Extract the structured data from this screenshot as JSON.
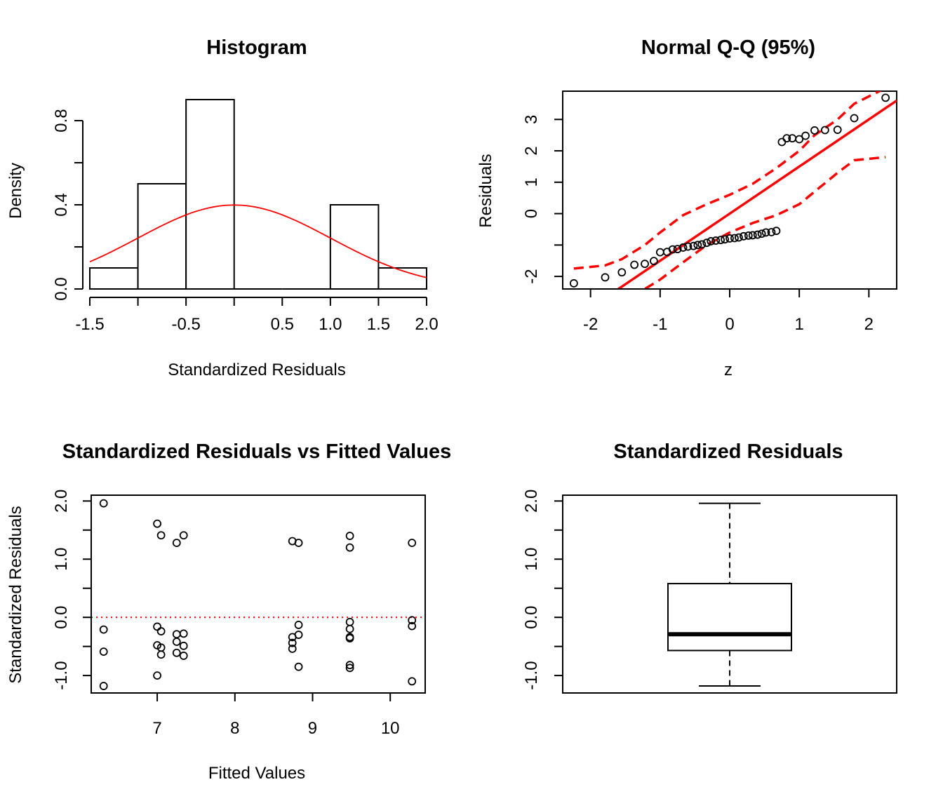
{
  "chart_data": [
    {
      "type": "histogram",
      "title": "Histogram",
      "xlabel": "Standardized Residuals",
      "ylabel": "Density",
      "xlim": [
        -1.5,
        2.0
      ],
      "ylim": [
        0,
        0.9
      ],
      "xticks": [
        "-1.5",
        "-0.5",
        "0.5",
        "1.0",
        "1.5",
        "2.0"
      ],
      "xtick_values": [
        -1.5,
        -0.5,
        0.5,
        1.0,
        1.5,
        2.0
      ],
      "xtick_marks": [
        -1.5,
        -1.0,
        -0.5,
        0,
        0.5,
        1.0,
        1.5,
        2.0
      ],
      "yticks": [
        "0.0",
        "0.4",
        "0.8"
      ],
      "ytick_values": [
        0,
        0.4,
        0.8
      ],
      "ytick_marks": [
        0,
        0.2,
        0.4,
        0.6,
        0.8
      ],
      "bins": [
        {
          "from": -1.5,
          "to": -1.0,
          "density": 0.1
        },
        {
          "from": -1.0,
          "to": -0.5,
          "density": 0.5
        },
        {
          "from": -0.5,
          "to": 0.0,
          "density": 0.9
        },
        {
          "from": 0.0,
          "to": 0.5,
          "density": 0.0
        },
        {
          "from": 0.5,
          "to": 1.0,
          "density": 0.0
        },
        {
          "from": 1.0,
          "to": 1.5,
          "density": 0.4
        },
        {
          "from": 1.5,
          "to": 2.0,
          "density": 0.1
        }
      ],
      "curve": {
        "kind": "normal density",
        "mean": 0,
        "sd": 1,
        "color": "#ff0000"
      }
    },
    {
      "type": "scatter",
      "title": "Normal Q-Q (95%)",
      "xlabel": "z",
      "ylabel": "Residuals",
      "xlim": [
        -2.4,
        2.4
      ],
      "ylim": [
        -2.4,
        3.9
      ],
      "xticks": [
        "-2",
        "-1",
        "0",
        "1",
        "2"
      ],
      "xtick_values": [
        -2,
        -1,
        0,
        1,
        2
      ],
      "yticks": [
        "-2",
        "0",
        "1",
        "2",
        "3"
      ],
      "ytick_values": [
        -2,
        0,
        1,
        2,
        3
      ],
      "ytick_marks": [
        -2,
        -1,
        0,
        1,
        2,
        3
      ],
      "points": [
        [
          -2.24,
          -2.22
        ],
        [
          -1.79,
          -2.03
        ],
        [
          -1.55,
          -1.87
        ],
        [
          -1.37,
          -1.63
        ],
        [
          -1.22,
          -1.6
        ],
        [
          -1.09,
          -1.51
        ],
        [
          -1.0,
          -1.23
        ],
        [
          -0.9,
          -1.22
        ],
        [
          -0.82,
          -1.14
        ],
        [
          -0.75,
          -1.13
        ],
        [
          -0.67,
          -1.08
        ],
        [
          -0.6,
          -1.05
        ],
        [
          -0.52,
          -1.03
        ],
        [
          -0.46,
          -1.0
        ],
        [
          -0.4,
          -0.98
        ],
        [
          -0.33,
          -0.93
        ],
        [
          -0.27,
          -0.88
        ],
        [
          -0.2,
          -0.86
        ],
        [
          -0.13,
          -0.84
        ],
        [
          -0.07,
          -0.82
        ],
        [
          0.0,
          -0.79
        ],
        [
          0.07,
          -0.78
        ],
        [
          0.13,
          -0.76
        ],
        [
          0.2,
          -0.72
        ],
        [
          0.27,
          -0.7
        ],
        [
          0.33,
          -0.69
        ],
        [
          0.4,
          -0.67
        ],
        [
          0.46,
          -0.64
        ],
        [
          0.52,
          -0.6
        ],
        [
          0.6,
          -0.59
        ],
        [
          0.67,
          -0.55
        ],
        [
          0.75,
          2.28
        ],
        [
          0.82,
          2.4
        ],
        [
          0.9,
          2.4
        ],
        [
          1.0,
          2.37
        ],
        [
          1.09,
          2.48
        ],
        [
          1.22,
          2.65
        ],
        [
          1.37,
          2.66
        ],
        [
          1.55,
          2.67
        ],
        [
          1.79,
          3.04
        ],
        [
          2.24,
          3.69
        ]
      ],
      "reference_line": {
        "intercept": 0.0,
        "slope": 1.5,
        "color": "#ff0000"
      },
      "envelope": {
        "x": [
          -2.24,
          -1.79,
          -1.55,
          -1.22,
          -1.0,
          -0.67,
          -0.33,
          0.0,
          0.33,
          0.67,
          1.0,
          1.22,
          1.55,
          1.79,
          2.24
        ],
        "upper": [
          -1.75,
          -1.65,
          -1.45,
          -1.0,
          -0.6,
          -0.05,
          0.3,
          0.6,
          0.95,
          1.45,
          2.0,
          2.5,
          3.0,
          3.5,
          4.0
        ],
        "lower": [
          -4.2,
          -3.3,
          -2.7,
          -2.4,
          -2.1,
          -1.55,
          -1.0,
          -0.6,
          -0.3,
          -0.05,
          0.3,
          0.7,
          1.3,
          1.7,
          1.8
        ],
        "color": "#ff0000",
        "style": "dashed"
      }
    },
    {
      "type": "scatter",
      "title": "Standardized Residuals vs Fitted Values",
      "xlabel": "Fitted Values",
      "ylabel": "Standardized Residuals",
      "xlim": [
        6.15,
        10.45
      ],
      "ylim": [
        -1.3,
        2.1
      ],
      "xticks": [
        "7",
        "8",
        "9",
        "10"
      ],
      "xtick_values": [
        7,
        8,
        9,
        10
      ],
      "yticks": [
        "-1.0",
        "0.0",
        "1.0",
        "2.0"
      ],
      "ytick_values": [
        -1.0,
        0.0,
        1.0,
        2.0
      ],
      "ytick_marks": [
        -1.0,
        -0.5,
        0.0,
        0.5,
        1.0,
        1.5,
        2.0
      ],
      "reference_hline": {
        "y": 0,
        "color": "#ff0000",
        "style": "dotted"
      },
      "points": [
        [
          6.31,
          1.96
        ],
        [
          6.31,
          -0.21
        ],
        [
          6.31,
          -0.59
        ],
        [
          6.31,
          -1.18
        ],
        [
          7.0,
          1.61
        ],
        [
          7.05,
          1.41
        ],
        [
          7.25,
          1.28
        ],
        [
          7.34,
          1.41
        ],
        [
          7.0,
          -0.16
        ],
        [
          7.05,
          -0.24
        ],
        [
          7.25,
          -0.29
        ],
        [
          7.34,
          -0.28
        ],
        [
          7.0,
          -0.48
        ],
        [
          7.05,
          -0.52
        ],
        [
          7.25,
          -0.42
        ],
        [
          7.34,
          -0.49
        ],
        [
          7.05,
          -0.64
        ],
        [
          7.25,
          -0.61
        ],
        [
          7.34,
          -0.66
        ],
        [
          7.0,
          -1.0
        ],
        [
          8.74,
          1.31
        ],
        [
          8.82,
          1.28
        ],
        [
          8.82,
          -0.13
        ],
        [
          8.82,
          -0.3
        ],
        [
          8.74,
          -0.34
        ],
        [
          8.74,
          -0.44
        ],
        [
          8.74,
          -0.54
        ],
        [
          8.82,
          -0.85
        ],
        [
          9.48,
          1.4
        ],
        [
          9.48,
          1.2
        ],
        [
          9.48,
          -0.08
        ],
        [
          9.48,
          -0.2
        ],
        [
          9.48,
          -0.34
        ],
        [
          9.48,
          -0.36
        ],
        [
          9.48,
          -0.82
        ],
        [
          9.48,
          -0.87
        ],
        [
          10.28,
          1.28
        ],
        [
          10.28,
          -0.05
        ],
        [
          10.28,
          -0.15
        ],
        [
          10.28,
          -1.1
        ]
      ]
    },
    {
      "type": "box",
      "title": "Standardized Residuals",
      "ylim": [
        -1.3,
        2.1
      ],
      "yticks": [
        "-1.0",
        "0.0",
        "1.0",
        "2.0"
      ],
      "ytick_values": [
        -1.0,
        0.0,
        1.0,
        2.0
      ],
      "ytick_marks": [
        -1.0,
        -0.5,
        0.0,
        0.5,
        1.0,
        1.5,
        2.0
      ],
      "min": -1.18,
      "q1": -0.57,
      "median": -0.29,
      "q3": 0.58,
      "max": 1.96
    }
  ]
}
